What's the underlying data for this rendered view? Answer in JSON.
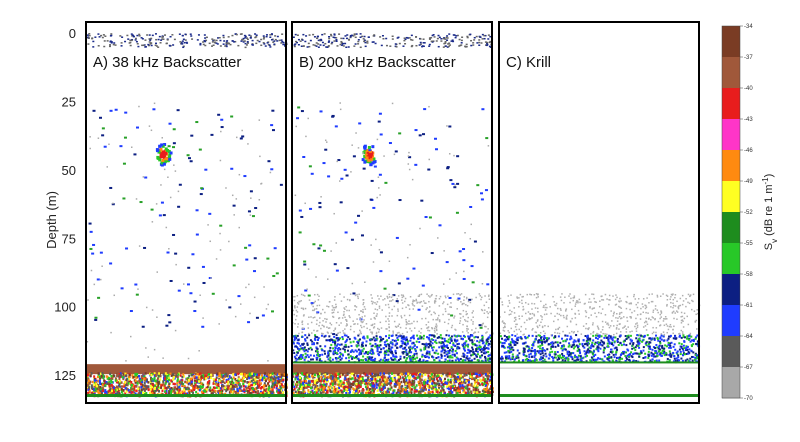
{
  "chart_data": {
    "type": "heatmap",
    "ylabel": "Depth (m)",
    "y_ticks": [
      0,
      25,
      50,
      75,
      100,
      125
    ],
    "ylim": [
      0,
      133
    ],
    "panels": [
      {
        "title": "A) 38 kHz Backscatter",
        "seabed_depth_m": 121,
        "features": [
          {
            "kind": "surface_noise",
            "depth_m": [
              0,
              3
            ]
          },
          {
            "kind": "fish_school",
            "depth_m": 44,
            "sv_db": -40
          },
          {
            "kind": "sparse_targets",
            "depth_m": [
              25,
              110
            ]
          },
          {
            "kind": "seabed_echo",
            "depth_m": [
              121,
              133
            ],
            "sv_db": -37
          }
        ]
      },
      {
        "title": "B) 200 kHz Backscatter",
        "seabed_depth_m": 121,
        "features": [
          {
            "kind": "surface_noise",
            "depth_m": [
              0,
              3
            ]
          },
          {
            "kind": "fish_school",
            "depth_m": 44,
            "sv_db": -40
          },
          {
            "kind": "sparse_targets",
            "depth_m": [
              25,
              110
            ]
          },
          {
            "kind": "krill_layer",
            "depth_m": [
              110,
              120
            ],
            "sv_db": -58
          },
          {
            "kind": "seabed_echo",
            "depth_m": [
              121,
              133
            ],
            "sv_db": -37
          }
        ]
      },
      {
        "title": "C) Krill",
        "seabed_depth_m": 121,
        "features": [
          {
            "kind": "krill_layer",
            "depth_m": [
              110,
              120
            ],
            "sv_db": -60
          }
        ]
      }
    ],
    "colorbar": {
      "label": "S_v (dB re 1 m⁻¹)",
      "label_main": "S",
      "label_sub": "v",
      "label_rest": " (dB re 1 m",
      "label_sup": "-1",
      "label_end": ")",
      "ticks": [
        "-34",
        "-37",
        "-40",
        "-43",
        "-46",
        "-49",
        "-52",
        "-55",
        "-58",
        "-61",
        "-64",
        "-67",
        "-70"
      ],
      "colors": [
        "#7a3c24",
        "#a0583a",
        "#e81d1d",
        "#ff35c8",
        "#ff8a10",
        "#ffff22",
        "#1e8c1e",
        "#28c828",
        "#0c1f82",
        "#1f3cff",
        "#5a5a5a",
        "#a8a8a8"
      ]
    }
  }
}
